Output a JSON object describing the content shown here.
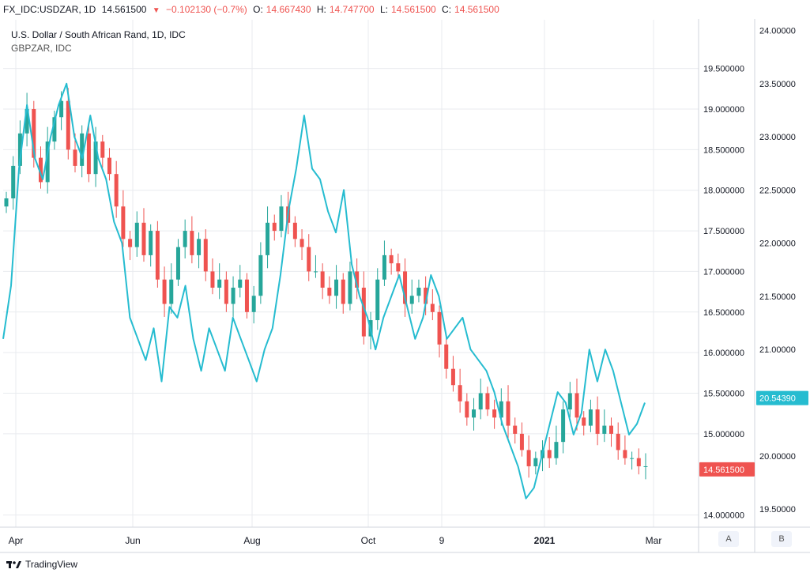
{
  "header": {
    "symbol": "FX_IDC:USDZAR, 1D",
    "last": "14.561500",
    "change": "−0.102130 (−0.7%)",
    "o_label": "O:",
    "o_value": "14.667430",
    "h_label": "H:",
    "h_value": "14.747700",
    "l_label": "L:",
    "l_value": "14.561500",
    "c_label": "C:",
    "c_value": "14.561500"
  },
  "legend": {
    "main": "U.S. Dollar / South African Rand, 1D, IDC",
    "secondary": "GBPZAR, IDC"
  },
  "scale_buttons": {
    "a": "A",
    "b": "B"
  },
  "footer": {
    "brand": "TradingView"
  },
  "icons": {
    "brand": "tradingview-logo-icon",
    "change_direction": "triangle-down-icon"
  },
  "colors": {
    "up": "#26a69a",
    "down": "#ef5350",
    "gbpzar": "#26bcd0",
    "grid": "#e9ebef"
  },
  "chart_data": {
    "type": "line",
    "x_ticks": [
      "Apr",
      "Jun",
      "Aug",
      "Oct",
      "9",
      "2021",
      "Mar"
    ],
    "left_axis": {
      "ylim": [
        13.85,
        20.1
      ],
      "ticks": [
        "19.500000",
        "19.000000",
        "18.500000",
        "18.000000",
        "17.500000",
        "17.000000",
        "16.500000",
        "16.000000",
        "15.500000",
        "15.000000",
        "14.000000"
      ],
      "tick_values": [
        19.5,
        19.0,
        18.5,
        18.0,
        17.5,
        17.0,
        16.5,
        16.0,
        15.5,
        15.0,
        14.0
      ]
    },
    "right_axis": {
      "ylim": [
        19.33,
        24.1
      ],
      "ticks": [
        "24.00000",
        "23.50000",
        "23.00000",
        "22.50000",
        "22.00000",
        "21.50000",
        "21.00000",
        "20.00000",
        "19.50000"
      ],
      "tick_values": [
        24.0,
        23.5,
        23.0,
        22.5,
        22.0,
        21.5,
        21.0,
        20.0,
        19.5
      ]
    },
    "last_labels": {
      "gbpzar": "20.54390",
      "usdzar": "14.561500"
    },
    "last_values": {
      "gbpzar": 20.5439,
      "usdzar": 14.5615
    },
    "series": [
      {
        "name": "USDZAR",
        "axis": "left",
        "style": "candles",
        "close": [
          17.9,
          18.3,
          18.7,
          19.0,
          18.4,
          18.1,
          18.6,
          18.9,
          19.1,
          18.5,
          18.3,
          18.7,
          18.2,
          18.6,
          18.4,
          18.2,
          17.8,
          17.4,
          17.3,
          17.6,
          17.2,
          17.5,
          16.9,
          16.6,
          16.9,
          17.3,
          17.5,
          17.2,
          17.4,
          17.0,
          16.8,
          16.9,
          16.6,
          16.8,
          16.9,
          16.5,
          16.7,
          17.2,
          17.6,
          17.5,
          17.8,
          17.6,
          17.4,
          17.3,
          17.0,
          17.0,
          16.8,
          16.7,
          16.9,
          16.6,
          17.0,
          16.8,
          16.2,
          16.4,
          16.9,
          17.2,
          17.1,
          17.0,
          16.6,
          16.7,
          16.8,
          16.6,
          16.5,
          16.1,
          15.8,
          15.6,
          15.4,
          15.2,
          15.3,
          15.5,
          15.3,
          15.2,
          15.4,
          15.1,
          15.0,
          14.8,
          14.6,
          14.7,
          14.8,
          14.7,
          14.9,
          15.3,
          15.5,
          15.2,
          15.1,
          15.3,
          15.0,
          15.1,
          15.0,
          14.8,
          14.7,
          14.7,
          14.6,
          14.6
        ]
      },
      {
        "name": "GBPZAR",
        "axis": "right",
        "style": "line",
        "values": [
          21.1,
          21.6,
          22.7,
          23.3,
          22.8,
          22.6,
          23.0,
          23.3,
          23.5,
          23.0,
          22.8,
          23.2,
          22.8,
          22.6,
          22.2,
          22.0,
          21.3,
          21.1,
          20.9,
          21.2,
          20.7,
          21.4,
          21.3,
          21.6,
          21.1,
          20.8,
          21.2,
          21.0,
          20.8,
          21.3,
          21.1,
          20.9,
          20.7,
          21.0,
          21.2,
          21.7,
          22.3,
          22.7,
          23.2,
          22.7,
          22.6,
          22.3,
          22.1,
          22.5,
          21.8,
          21.5,
          21.3,
          21.0,
          21.3,
          21.5,
          21.7,
          21.4,
          21.1,
          21.3,
          21.7,
          21.5,
          21.1,
          21.2,
          21.3,
          21.0,
          20.9,
          20.8,
          20.6,
          20.3,
          20.1,
          19.9,
          19.6,
          19.7,
          20.0,
          20.3,
          20.6,
          20.5,
          20.2,
          20.4,
          21.0,
          20.7,
          21.0,
          20.8,
          20.5,
          20.2,
          20.3,
          20.5
        ]
      }
    ],
    "grid": true,
    "legend_position": "top-left"
  }
}
